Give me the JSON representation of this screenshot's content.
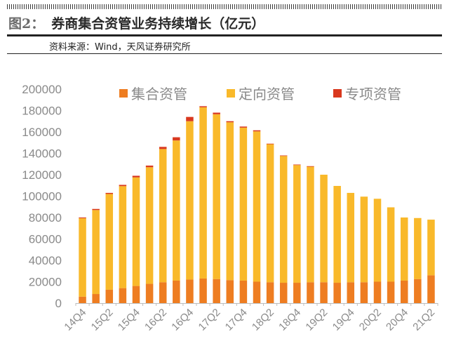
{
  "header": {
    "figure_label": "图2：",
    "title": "券商集合资管业务持续增长（亿元）",
    "source": "资料来源：Wind，天风证券研究所"
  },
  "chart_data": {
    "type": "bar",
    "stacked": true,
    "title": "",
    "xlabel": "",
    "ylabel": "",
    "ylim": [
      0,
      200000
    ],
    "yticks": [
      0,
      20000,
      40000,
      60000,
      80000,
      100000,
      120000,
      140000,
      160000,
      180000,
      200000
    ],
    "legend_position": "top",
    "grid": false,
    "categories": [
      "14Q4",
      "15Q1",
      "15Q2",
      "15Q3",
      "15Q4",
      "16Q1",
      "16Q2",
      "16Q3",
      "16Q4",
      "17Q1",
      "17Q2",
      "17Q3",
      "17Q4",
      "18Q1",
      "18Q2",
      "18Q3",
      "18Q4",
      "19Q1",
      "19Q2",
      "19Q3",
      "19Q4",
      "20Q1",
      "20Q2",
      "20Q3",
      "20Q4",
      "21Q1",
      "21Q2"
    ],
    "tick_labels_shown": [
      "14Q4",
      "15Q2",
      "15Q4",
      "16Q2",
      "16Q4",
      "17Q2",
      "17Q4",
      "18Q2",
      "18Q4",
      "19Q2",
      "19Q4",
      "20Q2",
      "20Q4",
      "21Q2"
    ],
    "series": [
      {
        "name": "集合资管",
        "color": "#EE7D21",
        "values": [
          6000,
          8500,
          12500,
          14000,
          16000,
          18000,
          19500,
          21000,
          22000,
          23000,
          22500,
          21500,
          21000,
          20000,
          19500,
          19000,
          19000,
          19500,
          19500,
          19000,
          19500,
          19500,
          20000,
          20000,
          21000,
          22500,
          26000
        ]
      },
      {
        "name": "定向资管",
        "color": "#F9B92A",
        "values": [
          73300,
          78500,
          89500,
          95300,
          101500,
          109000,
          124500,
          131000,
          148000,
          160000,
          154000,
          147500,
          143000,
          140500,
          129000,
          118500,
          110000,
          108000,
          100500,
          90500,
          83500,
          80000,
          77500,
          69500,
          59000,
          57000,
          52000
        ]
      },
      {
        "name": "专项资管",
        "color": "#D9381E",
        "values": [
          700,
          1000,
          1000,
          1200,
          1500,
          1500,
          2000,
          3000,
          4000,
          1000,
          1500,
          1000,
          1000,
          1000,
          500,
          500,
          500,
          500,
          0,
          0,
          0,
          0,
          0,
          0,
          0,
          0,
          0
        ]
      }
    ]
  }
}
